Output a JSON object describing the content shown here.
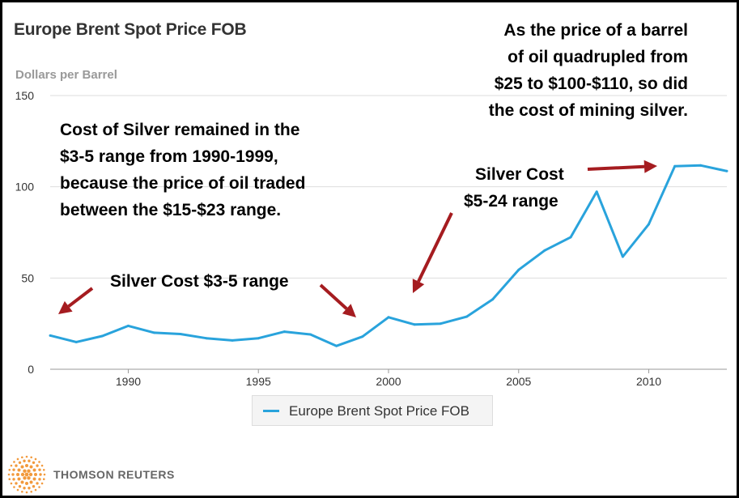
{
  "header": {
    "title": "Europe Brent Spot Price FOB",
    "unit": "Dollars per Barrel"
  },
  "annotations": {
    "top_right": [
      "As the price of a barrel",
      "of oil quadrupled from",
      "$25 to $100-$110, so did",
      "the cost of mining silver."
    ],
    "left": [
      "Cost of Silver remained in the",
      "$3-5 range from 1990-1999,",
      "because the price of oil traded",
      "between the $15-$23 range."
    ],
    "middle_right": [
      "Silver Cost",
      "$5-24 range"
    ],
    "bottom": "Silver Cost $3-5 range"
  },
  "colors": {
    "line": "#29a3dc",
    "arrow": "#a51c20",
    "grid": "#dddddd"
  },
  "footer": {
    "brand": "THOMSON REUTERS",
    "logo_icon": "thomson-reuters-logo-icon"
  },
  "chart_data": {
    "type": "line",
    "title": "Europe Brent Spot Price FOB",
    "ylabel": "Dollars per Barrel",
    "xlim": [
      1987,
      2013
    ],
    "ylim": [
      0,
      150
    ],
    "yticks": [
      0,
      50,
      100,
      150
    ],
    "xticks": [
      1990,
      1995,
      2000,
      2005,
      2010
    ],
    "grid": true,
    "legend": "bottom",
    "series": [
      {
        "name": "Europe Brent Spot Price FOB",
        "x": [
          1987,
          1988,
          1989,
          1990,
          1991,
          1992,
          1993,
          1994,
          1995,
          1996,
          1997,
          1998,
          1999,
          2000,
          2001,
          2002,
          2003,
          2004,
          2005,
          2006,
          2007,
          2008,
          2009,
          2010,
          2011,
          2012,
          2013
        ],
        "values": [
          18.5,
          14.9,
          18.2,
          23.8,
          20.0,
          19.3,
          17.0,
          15.8,
          17.0,
          20.6,
          19.1,
          12.8,
          17.9,
          28.5,
          24.5,
          25.0,
          28.8,
          38.3,
          54.5,
          65.1,
          72.4,
          97.3,
          61.7,
          79.5,
          111.3,
          111.7,
          108.6
        ]
      }
    ]
  }
}
